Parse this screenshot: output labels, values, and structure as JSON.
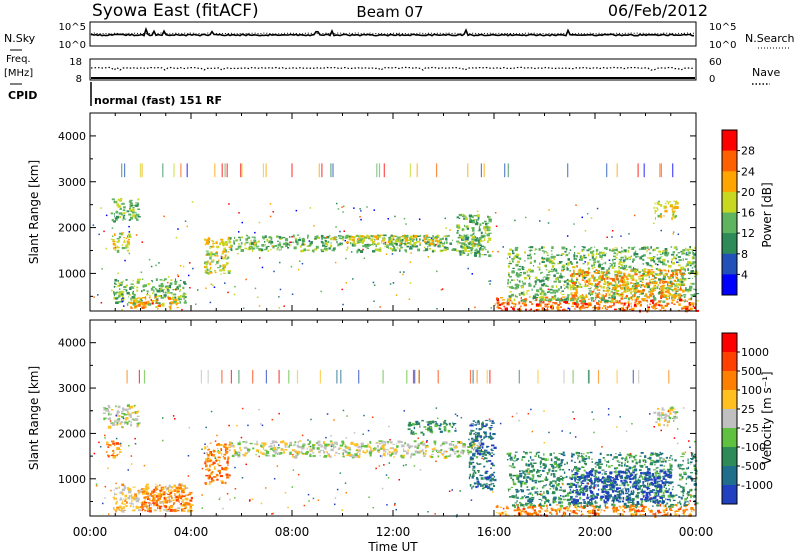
{
  "header": {
    "station": "Syowa East (fitACF)",
    "beam": "Beam 07",
    "date": "06/Feb/2012"
  },
  "top_panels": {
    "nsky_label": "N.Sky",
    "nsearch_label": "N.Search",
    "nsky_ticks": [
      "10^5",
      "10^0"
    ],
    "nsearch_ticks": [
      "10^5",
      "10^0"
    ],
    "freq_label": "Freq.",
    "freq_unit": "[MHz]",
    "freq_ticks": [
      "18",
      "8"
    ],
    "nave_label": "Nave",
    "nave_ticks": [
      "60",
      "0"
    ],
    "cpid_label": "CPID",
    "cpid_value": "normal (fast) 151 RF"
  },
  "colors": {
    "power_scale": [
      "#0000ff",
      "#2050b8",
      "#2e8b57",
      "#5fb45f",
      "#c8d820",
      "#ffa500",
      "#ff6000",
      "#ff0000"
    ],
    "velocity_scale": [
      "#2040c0",
      "#1e6e8c",
      "#2e8b57",
      "#60c040",
      "#c0c0c0",
      "#ffc020",
      "#ff8000",
      "#ff4000",
      "#ff0000"
    ]
  },
  "chart_data": [
    {
      "type": "heatmap",
      "name": "power",
      "xlabel": "",
      "ylabel": "Slant Range [km]",
      "xlim": [
        0,
        24
      ],
      "ylim": [
        180,
        4500
      ],
      "x_ticks": [
        "00:00",
        "04:00",
        "08:00",
        "12:00",
        "16:00",
        "20:00",
        "00:00"
      ],
      "y_ticks": [
        "1000",
        "2000",
        "3000",
        "4000"
      ],
      "colorbar_label": "Power [dB]",
      "colorbar_ticks": [
        "28",
        "24",
        "20",
        "16",
        "12",
        "8",
        "4"
      ],
      "regions": [
        {
          "t0": 0.8,
          "t1": 1.9,
          "r0": 2150,
          "r1": 2650,
          "level": 3
        },
        {
          "t0": 0.8,
          "t1": 1.6,
          "r0": 1500,
          "r1": 1900,
          "level": 4
        },
        {
          "t0": 0.9,
          "t1": 3.8,
          "r0": 350,
          "r1": 900,
          "level": 3
        },
        {
          "t0": 1.5,
          "t1": 3.5,
          "r0": 250,
          "r1": 500,
          "level": 5
        },
        {
          "t0": 4.5,
          "t1": 5.5,
          "r0": 1000,
          "r1": 1800,
          "level": 4
        },
        {
          "t0": 5.5,
          "t1": 15.5,
          "r0": 1500,
          "r1": 1850,
          "level": 3
        },
        {
          "t0": 9.5,
          "t1": 14.0,
          "r0": 1650,
          "r1": 1850,
          "level": 4
        },
        {
          "t0": 14.5,
          "t1": 15.8,
          "r0": 1400,
          "r1": 2300,
          "level": 3
        },
        {
          "t0": 16.0,
          "t1": 24.0,
          "r0": 200,
          "r1": 500,
          "level": 6
        },
        {
          "t0": 16.5,
          "t1": 24.0,
          "r0": 400,
          "r1": 1600,
          "level": 3
        },
        {
          "t0": 19.0,
          "t1": 23.5,
          "r0": 500,
          "r1": 1100,
          "level": 5
        },
        {
          "t0": 22.3,
          "t1": 23.2,
          "r0": 2200,
          "r1": 2600,
          "level": 4
        }
      ]
    },
    {
      "type": "heatmap",
      "name": "velocity",
      "xlabel": "Time UT",
      "ylabel": "Slant Range [km]",
      "xlim": [
        0,
        24
      ],
      "ylim": [
        180,
        4500
      ],
      "x_ticks": [
        "00:00",
        "04:00",
        "08:00",
        "12:00",
        "16:00",
        "20:00",
        "00:00"
      ],
      "y_ticks": [
        "1000",
        "2000",
        "3000",
        "4000"
      ],
      "colorbar_label": "Velocity [m s⁻¹]",
      "colorbar_ticks": [
        "1000",
        "500",
        "100",
        "25",
        "-25",
        "-100",
        "-500",
        "-1000"
      ],
      "regions": [
        {
          "t0": 0.5,
          "t1": 1.9,
          "r0": 2150,
          "r1": 2650,
          "level": 4
        },
        {
          "t0": 0.6,
          "t1": 1.2,
          "r0": 1500,
          "r1": 1900,
          "level": 6
        },
        {
          "t0": 0.9,
          "t1": 3.8,
          "r0": 300,
          "r1": 900,
          "level": 5
        },
        {
          "t0": 2.0,
          "t1": 4.0,
          "r0": 300,
          "r1": 800,
          "level": 6
        },
        {
          "t0": 4.5,
          "t1": 5.5,
          "r0": 900,
          "r1": 1800,
          "level": 6
        },
        {
          "t0": 5.5,
          "t1": 15.5,
          "r0": 1500,
          "r1": 1850,
          "level": 4
        },
        {
          "t0": 12.5,
          "t1": 14.5,
          "r0": 2000,
          "r1": 2300,
          "level": 2
        },
        {
          "t0": 15.0,
          "t1": 16.0,
          "r0": 800,
          "r1": 2300,
          "level": 1
        },
        {
          "t0": 16.0,
          "t1": 24.0,
          "r0": 200,
          "r1": 450,
          "level": 6
        },
        {
          "t0": 16.5,
          "t1": 24.0,
          "r0": 400,
          "r1": 1600,
          "level": 2
        },
        {
          "t0": 19.0,
          "t1": 23.0,
          "r0": 500,
          "r1": 1200,
          "level": 0
        },
        {
          "t0": 22.3,
          "t1": 23.2,
          "r0": 2200,
          "r1": 2600,
          "level": 4
        }
      ]
    }
  ]
}
